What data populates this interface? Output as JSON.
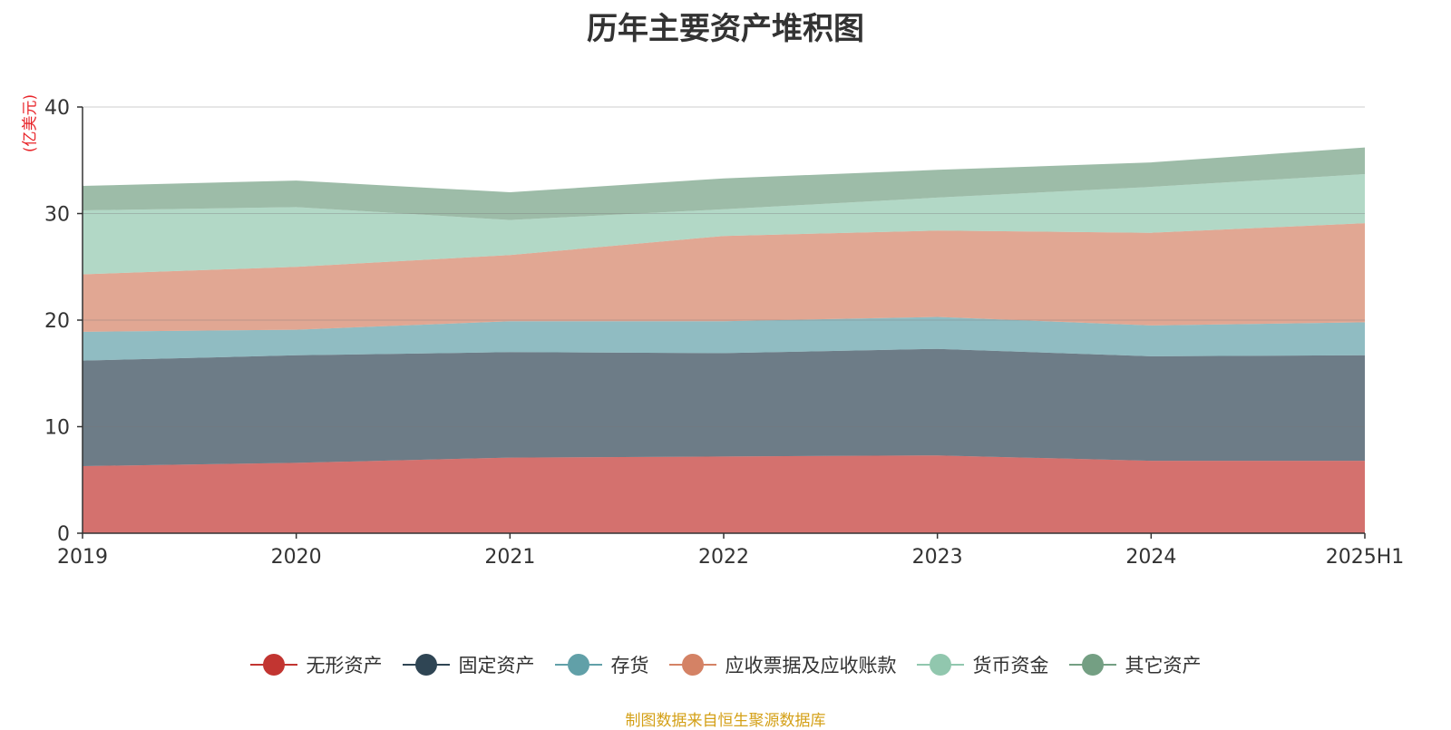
{
  "chart_data": {
    "type": "area",
    "stacked": true,
    "title": "历年主要资产堆积图",
    "y_unit": "(亿美元)",
    "categories": [
      "2019",
      "2020",
      "2021",
      "2022",
      "2023",
      "2024",
      "2025H1"
    ],
    "ylim": [
      0,
      40
    ],
    "y_ticks": [
      0,
      10,
      20,
      30,
      40
    ],
    "grid": true,
    "legend_position": "bottom",
    "series": [
      {
        "name": "无形资产",
        "color": "#c23531",
        "values": [
          6.3,
          6.6,
          7.1,
          7.2,
          7.3,
          6.8,
          6.8
        ]
      },
      {
        "name": "固定资产",
        "color": "#2f4554",
        "values": [
          9.9,
          10.1,
          9.9,
          9.7,
          10.0,
          9.8,
          9.9
        ]
      },
      {
        "name": "存货",
        "color": "#61a0a8",
        "values": [
          2.7,
          2.4,
          2.9,
          3.0,
          3.0,
          2.9,
          3.1
        ]
      },
      {
        "name": "应收票据及应收账款",
        "color": "#d48265",
        "values": [
          5.4,
          5.9,
          6.2,
          8.0,
          8.1,
          8.7,
          9.3
        ]
      },
      {
        "name": "货币资金",
        "color": "#91c7ae",
        "values": [
          6.0,
          5.6,
          3.3,
          2.5,
          3.1,
          4.3,
          4.6
        ]
      },
      {
        "name": "其它资产",
        "color": "#749f83",
        "values": [
          2.3,
          2.5,
          2.6,
          2.9,
          2.6,
          2.3,
          2.5
        ]
      }
    ]
  },
  "source_note": "制图数据来自恒生聚源数据库"
}
